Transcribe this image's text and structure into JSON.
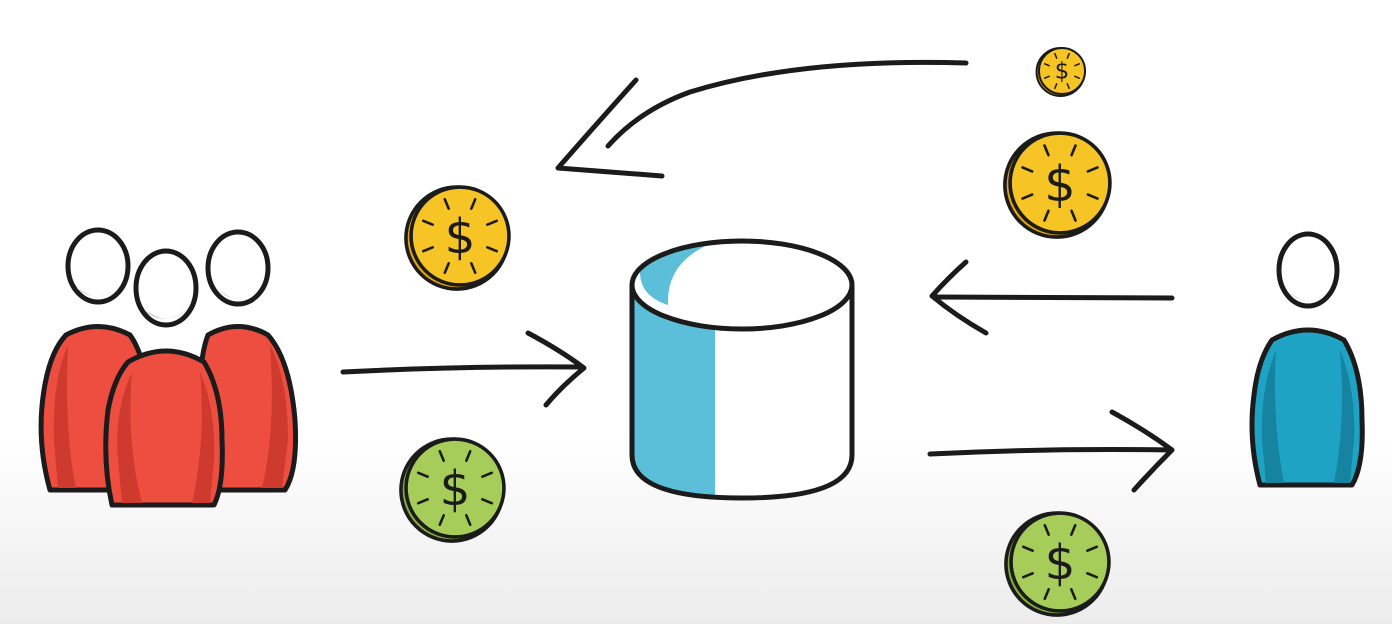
{
  "colors": {
    "outline": "#1b1b1b",
    "group_body": "#ee4e40",
    "group_body_shade": "#cf3a2e",
    "head_fill": "#ffffff",
    "head_shade": "#cfcfcf",
    "individual_body": "#1ea3c5",
    "individual_body_shade": "#1683a0",
    "pool_side": "#5bbfd9",
    "pool_white": "#ffffff",
    "coin_gold": "#f6c425",
    "coin_gold_rim": "#e3a60c",
    "coin_green": "#a6cc5a",
    "coin_green_rim": "#86ad3c"
  },
  "icons": {
    "group": "people-group-icon",
    "individual": "person-icon",
    "pool": "database-cylinder-icon",
    "coin": "dollar-coin-icon"
  },
  "coin_symbol": "$",
  "coins": [
    {
      "name": "gold-coin-payout-small",
      "color": "gold"
    },
    {
      "name": "gold-coin-payout-large",
      "color": "gold"
    },
    {
      "name": "gold-coin-return",
      "color": "gold"
    },
    {
      "name": "green-coin-contribution",
      "color": "green"
    },
    {
      "name": "green-coin-outflow",
      "color": "green"
    }
  ]
}
